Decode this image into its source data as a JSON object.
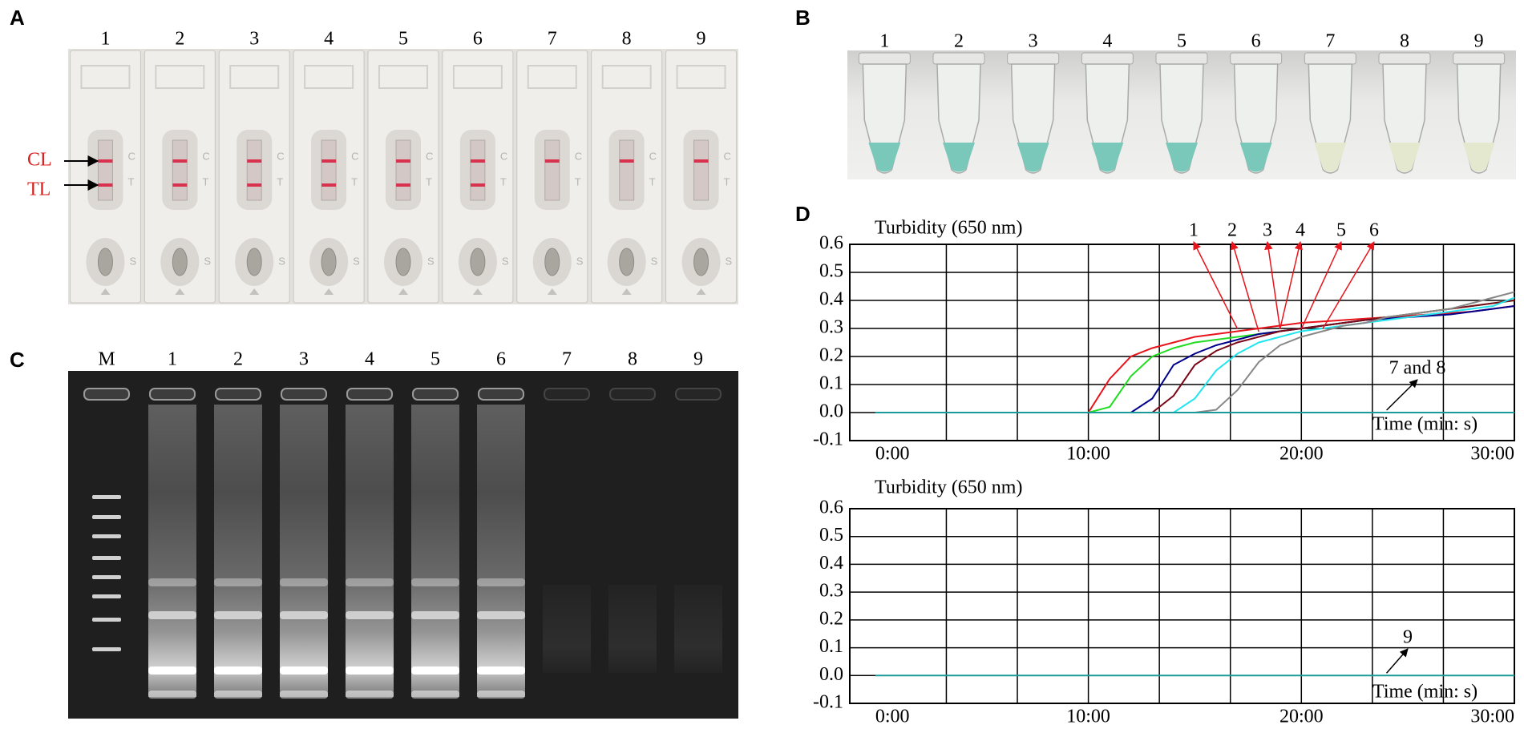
{
  "panel_labels": [
    "A",
    "B",
    "C",
    "D"
  ],
  "strip_test": {
    "lanes": [
      "1",
      "2",
      "3",
      "4",
      "5",
      "6",
      "7",
      "8",
      "9"
    ],
    "line_labels": [
      "CL",
      "TL"
    ],
    "cassette_marks": [
      "C",
      "T",
      "S"
    ]
  },
  "tubes": {
    "lanes": [
      "1",
      "2",
      "3",
      "4",
      "5",
      "6",
      "7",
      "8",
      "9"
    ]
  },
  "gel": {
    "lanes": [
      "M",
      "1",
      "2",
      "3",
      "4",
      "5",
      "6",
      "7",
      "8",
      "9"
    ]
  },
  "chart_data": [
    {
      "type": "line",
      "y_label": "Turbidity (650 nm)",
      "x_label": "Time (min: s)",
      "x": [
        0,
        1,
        2,
        3,
        4,
        5,
        6,
        7,
        8,
        9,
        10,
        11,
        12,
        13,
        14,
        15,
        16,
        17,
        18,
        19,
        20,
        21,
        22,
        23,
        24,
        25,
        26,
        27,
        28,
        29,
        30
      ],
      "series": [
        {
          "name": "1",
          "color": "#e8141c",
          "values": [
            0,
            0,
            0,
            0,
            0,
            0,
            0,
            0,
            0,
            0,
            0,
            0.12,
            0.2,
            0.23,
            0.25,
            0.27,
            0.28,
            0.29,
            0.3,
            0.31,
            0.32,
            0.325,
            0.33,
            0.335,
            0.34,
            0.345,
            0.35,
            0.355,
            0.36,
            0.37,
            0.38
          ]
        },
        {
          "name": "2",
          "color": "#22dd22",
          "values": [
            0,
            0,
            0,
            0,
            0,
            0,
            0,
            0,
            0,
            0,
            0,
            0.02,
            0.13,
            0.2,
            0.23,
            0.25,
            0.26,
            0.27,
            0.28,
            0.29,
            0.3,
            0.31,
            0.32,
            0.33,
            0.34,
            0.35,
            0.36,
            0.37,
            0.38,
            0.39,
            0.4
          ]
        },
        {
          "name": "3",
          "color": "#00008b",
          "values": [
            0,
            0,
            0,
            0,
            0,
            0,
            0,
            0,
            0,
            0,
            0,
            0,
            0,
            0.05,
            0.17,
            0.21,
            0.24,
            0.26,
            0.28,
            0.29,
            0.3,
            0.31,
            0.32,
            0.33,
            0.335,
            0.34,
            0.345,
            0.35,
            0.36,
            0.37,
            0.38
          ]
        },
        {
          "name": "4",
          "color": "#7b0a1a",
          "values": [
            0,
            0,
            0,
            0,
            0,
            0,
            0,
            0,
            0,
            0,
            0,
            0,
            0,
            0,
            0.06,
            0.17,
            0.22,
            0.25,
            0.27,
            0.29,
            0.3,
            0.31,
            0.32,
            0.33,
            0.34,
            0.35,
            0.36,
            0.37,
            0.38,
            0.39,
            0.4
          ]
        },
        {
          "name": "5",
          "color": "#22e5f0",
          "values": [
            0,
            0,
            0,
            0,
            0,
            0,
            0,
            0,
            0,
            0,
            0,
            0,
            0,
            0,
            0,
            0.05,
            0.15,
            0.21,
            0.25,
            0.27,
            0.29,
            0.3,
            0.31,
            0.32,
            0.33,
            0.34,
            0.35,
            0.36,
            0.37,
            0.38,
            0.41
          ]
        },
        {
          "name": "6",
          "color": "#888888",
          "values": [
            0,
            0,
            0,
            0,
            0,
            0,
            0,
            0,
            0,
            0,
            0,
            0,
            0,
            0,
            0,
            0,
            0.01,
            0.08,
            0.18,
            0.24,
            0.27,
            0.29,
            0.31,
            0.32,
            0.34,
            0.35,
            0.36,
            0.37,
            0.39,
            0.41,
            0.43
          ]
        },
        {
          "name": "7 and 8",
          "color": "#1a9a9a",
          "values": [
            0,
            0,
            0,
            0,
            0,
            0,
            0,
            0,
            0,
            0,
            0,
            0,
            0,
            0,
            0,
            0,
            0,
            0,
            0,
            0,
            0,
            0,
            0,
            0,
            0,
            0,
            0,
            0,
            0,
            0,
            0
          ]
        }
      ],
      "xlim": [
        -1.2,
        30
      ],
      "ylim": [
        -0.1,
        0.6
      ],
      "xticks": [
        {
          "value": 0,
          "label": "0:00"
        },
        {
          "value": 10,
          "label": "10:00"
        },
        {
          "value": 20,
          "label": "20:00"
        },
        {
          "value": 30,
          "label": "30:00"
        }
      ],
      "xgrid": [
        3.333,
        6.667,
        10,
        13.333,
        16.667,
        20,
        23.333,
        26.667
      ],
      "yticks": [
        0.6,
        0.5,
        0.4,
        0.3,
        0.2,
        0.1,
        {
          "value": 0,
          "label": "0.0"
        },
        -0.1
      ],
      "grid": true
    },
    {
      "type": "line",
      "y_label": "Turbidity (650 nm)",
      "x_label": "Time (min: s)",
      "x": [
        0,
        1,
        2,
        3,
        4,
        5,
        6,
        7,
        8,
        9,
        10,
        11,
        12,
        13,
        14,
        15,
        16,
        17,
        18,
        19,
        20,
        21,
        22,
        23,
        24,
        25,
        26,
        27,
        28,
        29,
        30
      ],
      "series": [
        {
          "name": "9",
          "color": "#1a9a9a",
          "values": [
            0,
            0,
            0,
            0,
            0,
            0,
            0,
            0,
            0,
            0,
            0,
            0,
            0,
            0,
            0,
            0,
            0,
            0,
            0,
            0,
            0,
            0,
            0,
            0,
            0,
            0,
            0,
            0,
            0,
            0,
            0
          ]
        }
      ],
      "xlim": [
        -1.2,
        30
      ],
      "ylim": [
        -0.1,
        0.6
      ],
      "xticks": [
        {
          "value": 0,
          "label": "0:00"
        },
        {
          "value": 10,
          "label": "10:00"
        },
        {
          "value": 20,
          "label": "20:00"
        },
        {
          "value": 30,
          "label": "30:00"
        }
      ],
      "xgrid": [
        3.333,
        6.667,
        10,
        13.333,
        16.667,
        20,
        23.333,
        26.667
      ],
      "yticks": [
        0.6,
        0.5,
        0.4,
        0.3,
        0.2,
        0.1,
        {
          "value": 0,
          "label": "0.0"
        },
        -0.1
      ],
      "grid": true
    }
  ]
}
